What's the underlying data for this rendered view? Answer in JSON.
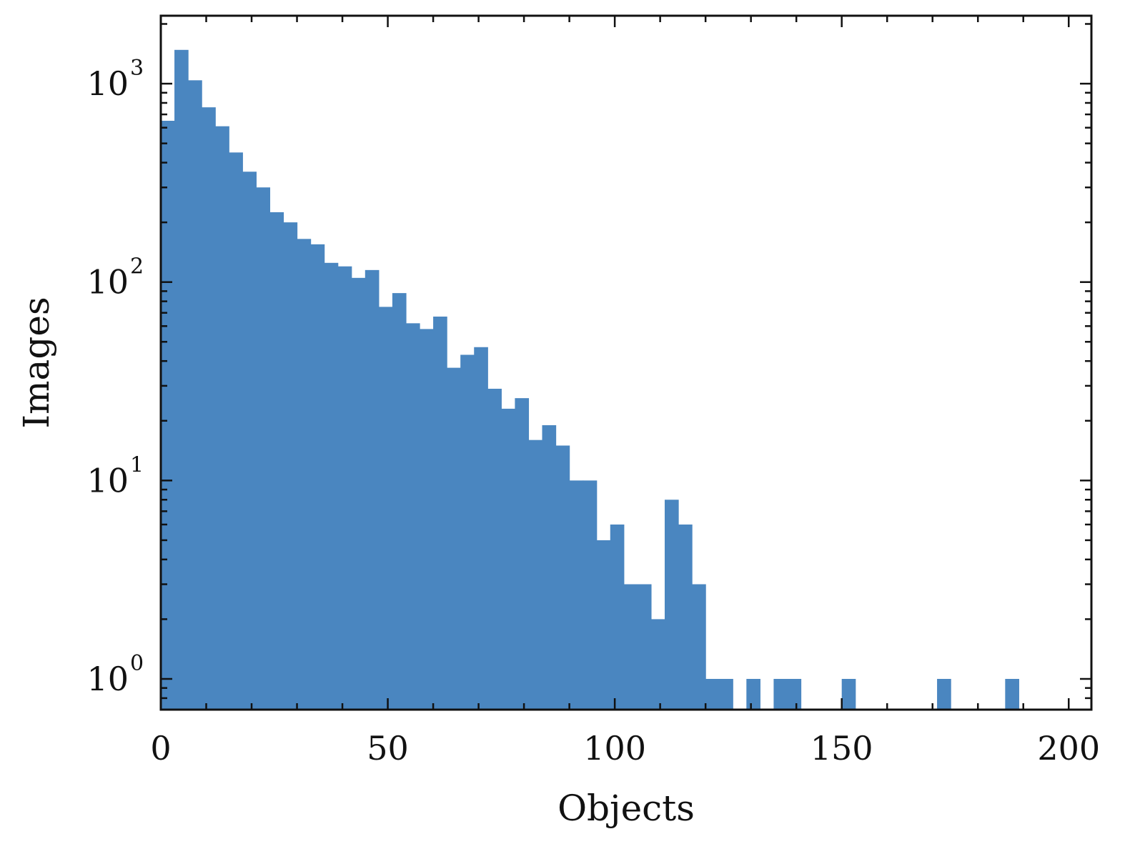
{
  "chart_data": {
    "type": "bar",
    "subtype": "histogram",
    "title": "",
    "xlabel": "Objects",
    "ylabel": "Images",
    "xlim": [
      0,
      205
    ],
    "ylim": [
      0.7,
      2200
    ],
    "yscale": "log",
    "grid": false,
    "color": "#4a86c0",
    "bin_width": 3,
    "bin_starts": [
      0,
      3,
      6,
      9,
      12,
      15,
      18,
      21,
      24,
      27,
      30,
      33,
      36,
      39,
      42,
      45,
      48,
      51,
      54,
      57,
      60,
      63,
      66,
      69,
      72,
      75,
      78,
      81,
      84,
      87,
      90,
      93,
      96,
      99,
      102,
      105,
      108,
      111,
      114,
      117,
      120,
      123,
      126,
      129,
      132,
      135,
      138,
      141,
      144,
      147,
      150,
      153,
      156,
      159,
      162,
      165,
      168,
      171,
      174,
      177,
      180,
      183,
      186,
      189
    ],
    "values": [
      650,
      1480,
      1040,
      760,
      610,
      450,
      360,
      300,
      225,
      200,
      165,
      155,
      125,
      120,
      105,
      115,
      75,
      88,
      62,
      58,
      67,
      37,
      43,
      47,
      29,
      23,
      26,
      16,
      19,
      15,
      10,
      10,
      5,
      6,
      3,
      3,
      2,
      8,
      6,
      3,
      1,
      1,
      0,
      1,
      0,
      1,
      1,
      0,
      0,
      0,
      1,
      0,
      0,
      0,
      0,
      0,
      0,
      1,
      0,
      0,
      0,
      0,
      1,
      0
    ],
    "x_ticks": [
      0,
      50,
      100,
      150,
      200
    ],
    "x_tick_labels": [
      "0",
      "50",
      "100",
      "150",
      "200"
    ],
    "y_ticks": [
      1,
      10,
      100,
      1000
    ],
    "y_tick_labels": [
      {
        "base": "10",
        "exp": "0"
      },
      {
        "base": "10",
        "exp": "1"
      },
      {
        "base": "10",
        "exp": "2"
      },
      {
        "base": "10",
        "exp": "3"
      }
    ]
  }
}
